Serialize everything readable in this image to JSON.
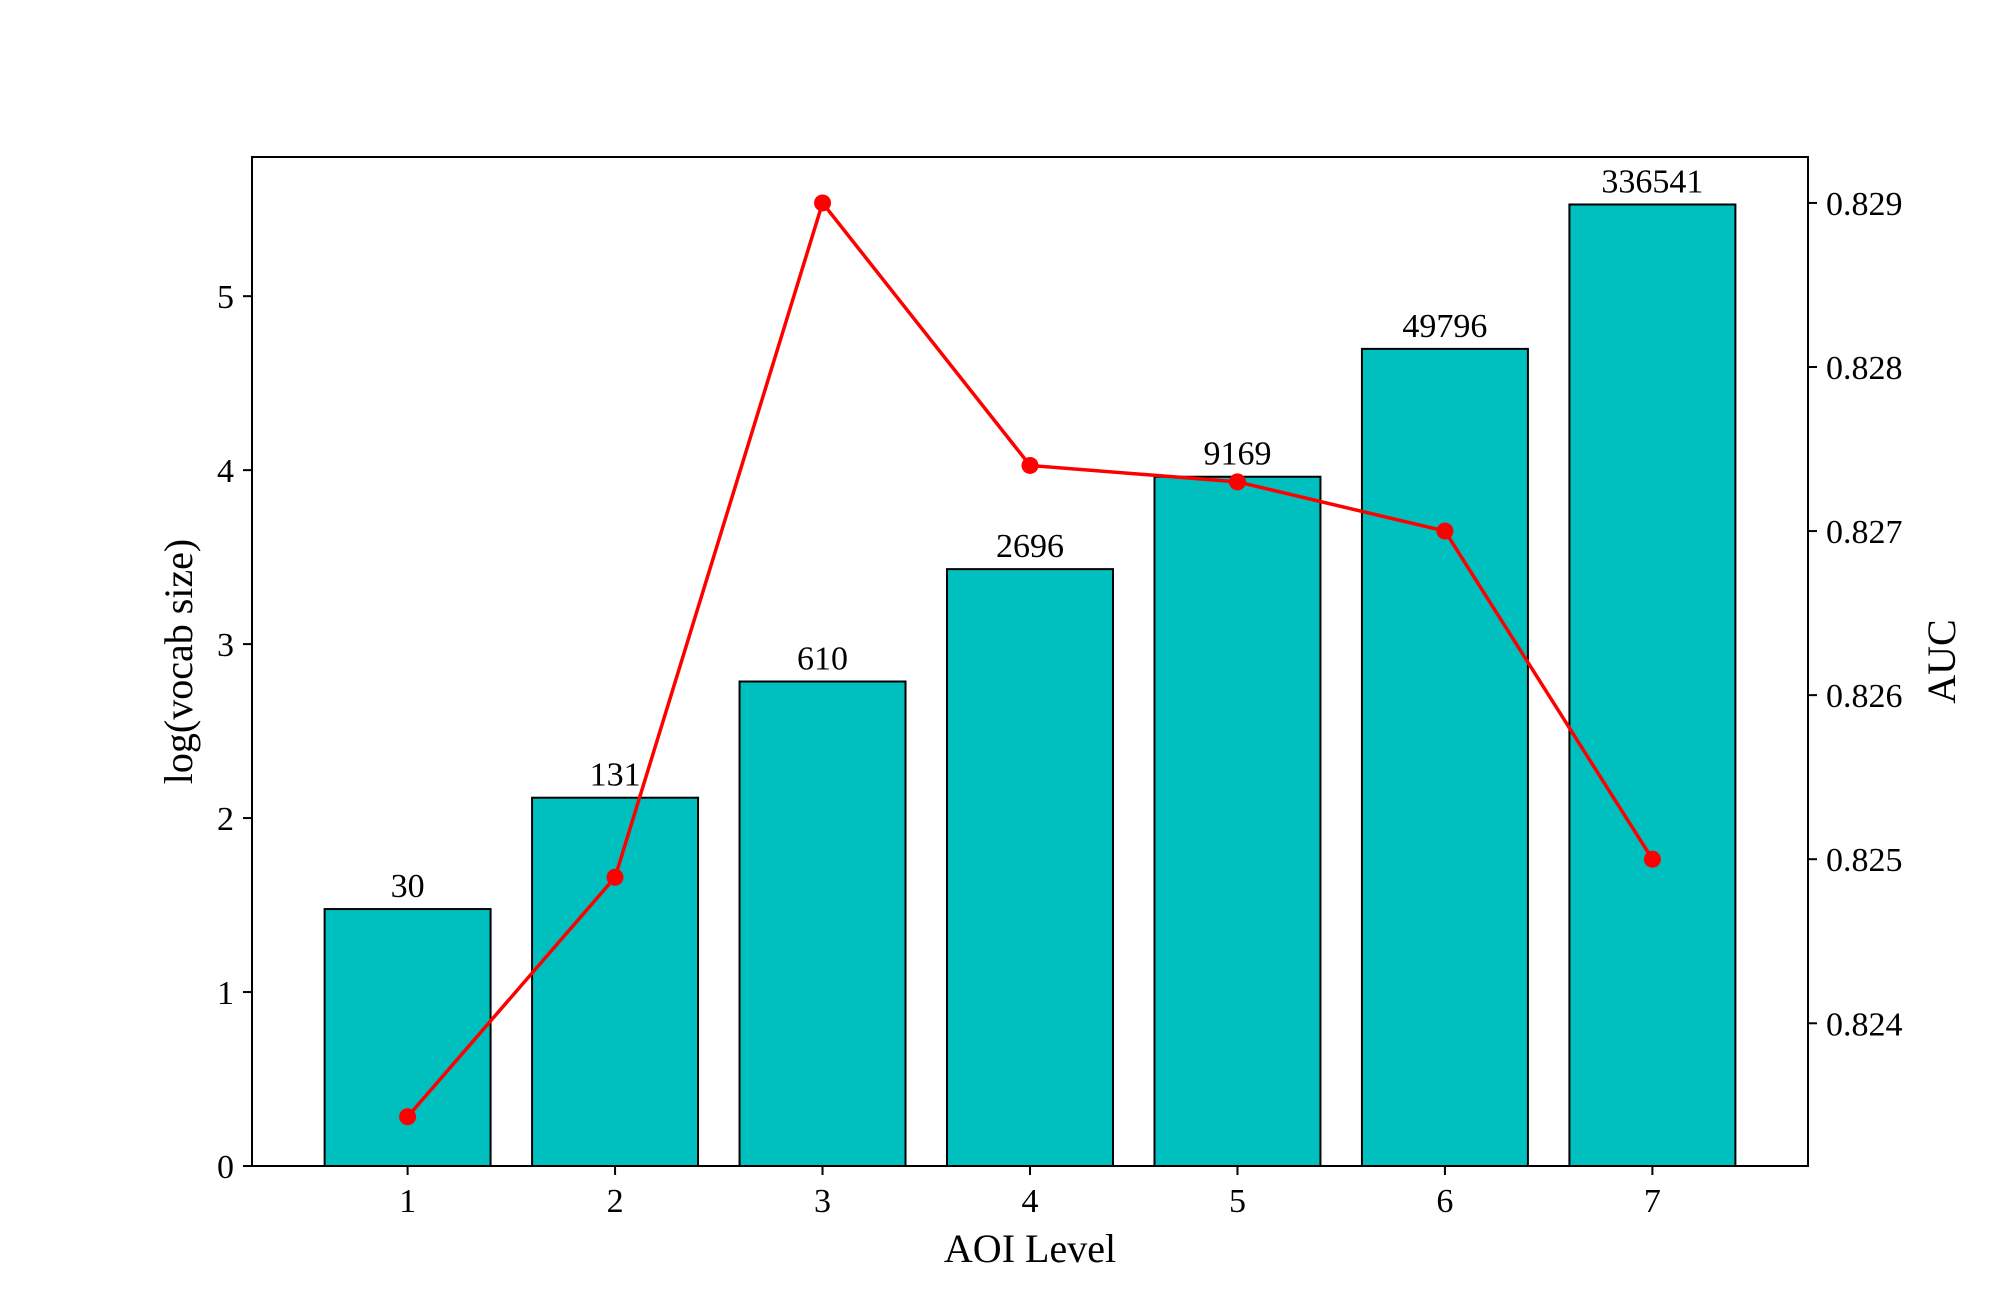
{
  "chart_data": {
    "type": "bar",
    "xlabel": "AOI Level",
    "ylabel": "log(vocab size)",
    "y2label": "AUC",
    "categories": [
      "1",
      "2",
      "3",
      "4",
      "5",
      "6",
      "7"
    ],
    "ylim": [
      0,
      5.8
    ],
    "yticks": [
      0,
      1,
      2,
      3,
      4,
      5
    ],
    "y2lim": [
      0.82313,
      0.82928
    ],
    "y2ticks": [
      "0.824",
      "0.825",
      "0.826",
      "0.827",
      "0.828",
      "0.829"
    ],
    "grid": false,
    "series": [
      {
        "type": "bar",
        "axis": "left",
        "values": [
          1.477,
          2.117,
          2.785,
          3.431,
          3.962,
          4.697,
          5.527
        ],
        "labels": [
          "30",
          "131",
          "610",
          "2696",
          "9169",
          "49796",
          "336541"
        ],
        "color": "#00bfbf"
      },
      {
        "type": "line",
        "axis": "right",
        "values": [
          0.82343,
          0.82489,
          0.829,
          0.8274,
          0.8273,
          0.827,
          0.825
        ],
        "color": "#ff0000"
      }
    ]
  }
}
